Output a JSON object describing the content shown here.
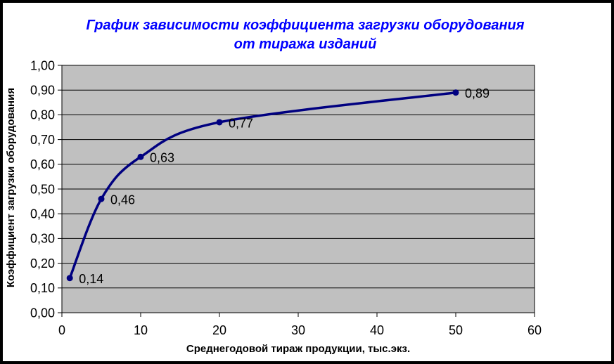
{
  "chart_data": {
    "type": "line",
    "title_lines": [
      "График зависимости коэффициента загрузки оборудования",
      "от тиража изданий"
    ],
    "xlabel": "Среднегодовой тираж продукции, тыс.экз.",
    "ylabel": "Коэффициент загрузки оборудования",
    "xlim": [
      0,
      60
    ],
    "ylim": [
      0,
      1.0
    ],
    "grid": "horizontal",
    "legend": "none",
    "series": [
      {
        "x": [
          1,
          5,
          10,
          20,
          50
        ],
        "y": [
          0.14,
          0.46,
          0.63,
          0.77,
          0.89
        ],
        "point_labels": [
          "0,14",
          "0,46",
          "0,63",
          "0,77",
          "0,89"
        ],
        "color": "#000080",
        "smooth": true,
        "marker": "circle"
      }
    ],
    "x_ticks": [
      {
        "v": 0,
        "label": "0"
      },
      {
        "v": 10,
        "label": "10"
      },
      {
        "v": 20,
        "label": "20"
      },
      {
        "v": 30,
        "label": "30"
      },
      {
        "v": 40,
        "label": "40"
      },
      {
        "v": 50,
        "label": "50"
      },
      {
        "v": 60,
        "label": "60"
      }
    ],
    "y_ticks": [
      {
        "v": 0.0,
        "label": "0,00"
      },
      {
        "v": 0.1,
        "label": "0,10"
      },
      {
        "v": 0.2,
        "label": "0,20"
      },
      {
        "v": 0.3,
        "label": "0,30"
      },
      {
        "v": 0.4,
        "label": "0,40"
      },
      {
        "v": 0.5,
        "label": "0,50"
      },
      {
        "v": 0.6,
        "label": "0,60"
      },
      {
        "v": 0.7,
        "label": "0,70"
      },
      {
        "v": 0.8,
        "label": "0,80"
      },
      {
        "v": 0.9,
        "label": "0,90"
      },
      {
        "v": 1.0,
        "label": "1,00"
      }
    ],
    "colors": {
      "title": "#0000FF",
      "text": "#000000",
      "plot_bg": "#C0C0C0",
      "grid": "#000000",
      "line": "#000080",
      "frame": "#000000",
      "background": "#FFFFFF"
    }
  }
}
